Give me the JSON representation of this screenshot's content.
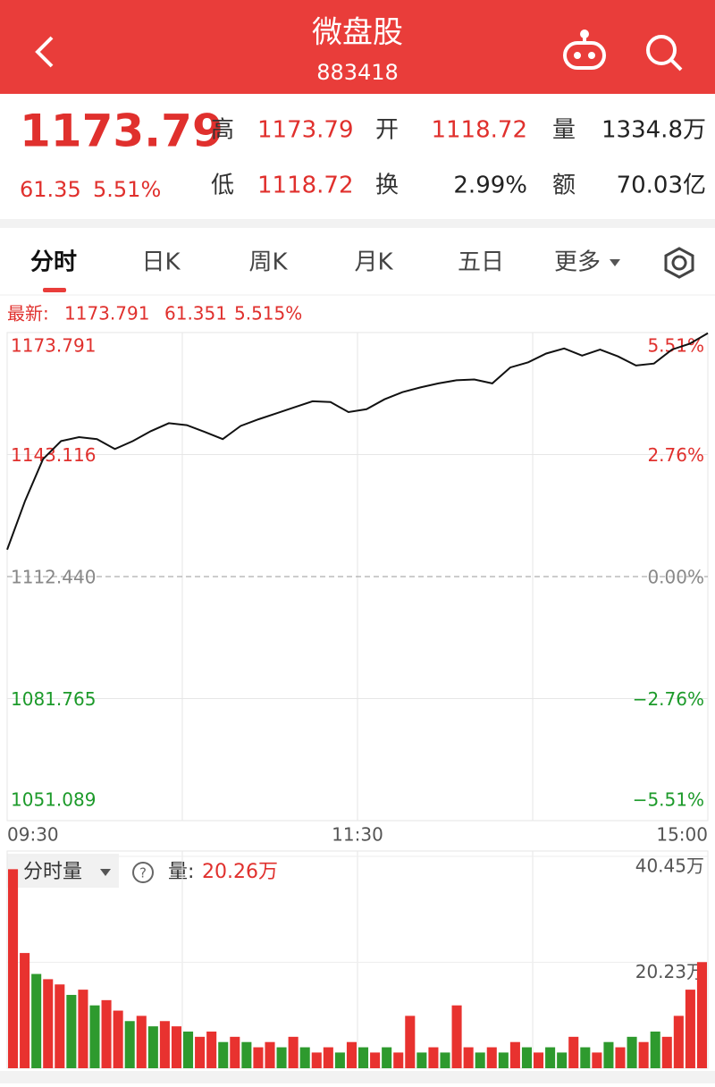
{
  "header": {
    "title": "微盘股",
    "code": "883418"
  },
  "quote": {
    "price": "1173.79",
    "change": "61.35",
    "change_pct": "5.51%",
    "items": [
      [
        "高",
        "1173.79"
      ],
      [
        "开",
        "1118.72"
      ],
      [
        "量",
        "1334.8万"
      ],
      [
        "低",
        "1118.72"
      ],
      [
        "换",
        "2.99%"
      ],
      [
        "额",
        "70.03亿"
      ]
    ]
  },
  "tabs": [
    "分时",
    "日K",
    "周K",
    "月K",
    "五日",
    "更多"
  ],
  "latest": {
    "label": "最新:",
    "price": "1173.791",
    "change": "61.351",
    "change_pct": "5.515%"
  },
  "chart_data": [
    {
      "type": "line",
      "color": "#111111",
      "values": [
        1119.2,
        1131.5,
        1142,
        1146.5,
        1147.5,
        1147,
        1144.5,
        1146.5,
        1149,
        1151,
        1150.5,
        1148.8,
        1147,
        1150.3,
        1152,
        1153.5,
        1155,
        1156.5,
        1156.3,
        1153.8,
        1154.5,
        1157,
        1158.8,
        1160,
        1161,
        1161.8,
        1162,
        1161,
        1165,
        1166.3,
        1168.5,
        1169.8,
        1168,
        1169.5,
        1167.8,
        1165.5,
        1166,
        1169.5,
        1171,
        1173.6
      ],
      "ylim": [
        1051.089,
        1173.791
      ],
      "yticks": [
        1173.791,
        1143.116,
        {
          "value": 1112.44,
          "label": "1112.440"
        },
        1081.765,
        1051.089
      ],
      "y2lim": [
        -5.51,
        5.51
      ],
      "y2ticks": [
        {
          "value": 5.51,
          "label": "5.51%"
        },
        {
          "value": 2.76,
          "label": "2.76%"
        },
        {
          "value": 0,
          "label": "0.00%"
        },
        {
          "value": -2.76,
          "label": "−2.76%"
        },
        {
          "value": -5.51,
          "label": "−5.51%"
        }
      ],
      "xtick_labels": [
        "09:30",
        "11:30",
        "15:00"
      ],
      "grid": true
    },
    {
      "type": "bar",
      "label": "分时量",
      "current_label": "量:",
      "current_value": "20.26万",
      "values": [
        38,
        22,
        18,
        17,
        16,
        14,
        15,
        12,
        13,
        11,
        9,
        10,
        8,
        9,
        8,
        7,
        6,
        7,
        5,
        6,
        5,
        4,
        5,
        4,
        6,
        4,
        3,
        4,
        3,
        5,
        4,
        3,
        4,
        3,
        10,
        3,
        4,
        3,
        12,
        4,
        3,
        4,
        3,
        5,
        4,
        3,
        4,
        3,
        6,
        4,
        3,
        5,
        4,
        6,
        5,
        7,
        6,
        10,
        15,
        20.26
      ],
      "colors": [
        "#e8322f",
        "#e8322f",
        "#2e9a2e",
        "#e8322f",
        "#e8322f",
        "#2e9a2e",
        "#e8322f",
        "#2e9a2e",
        "#e8322f",
        "#e8322f",
        "#2e9a2e",
        "#e8322f",
        "#2e9a2e",
        "#e8322f",
        "#e8322f",
        "#2e9a2e",
        "#e8322f",
        "#e8322f",
        "#2e9a2e",
        "#e8322f",
        "#2e9a2e",
        "#e8322f",
        "#e8322f",
        "#2e9a2e",
        "#e8322f",
        "#2e9a2e",
        "#e8322f",
        "#e8322f",
        "#2e9a2e",
        "#e8322f",
        "#2e9a2e",
        "#e8322f",
        "#2e9a2e",
        "#e8322f",
        "#e8322f",
        "#2e9a2e",
        "#e8322f",
        "#2e9a2e",
        "#e8322f",
        "#e8322f",
        "#2e9a2e",
        "#e8322f",
        "#2e9a2e",
        "#e8322f",
        "#2e9a2e",
        "#e8322f",
        "#2e9a2e",
        "#2e9a2e",
        "#e8322f",
        "#2e9a2e",
        "#e8322f",
        "#2e9a2e",
        "#e8322f",
        "#2e9a2e",
        "#e8322f",
        "#2e9a2e",
        "#e8322f",
        "#e8322f",
        "#e8322f",
        "#e8322f"
      ],
      "ylim": [
        0,
        40.45
      ],
      "yticks": [
        {
          "value": 40.45,
          "label": "40.45万"
        },
        {
          "value": 20.23,
          "label": "20.23万"
        }
      ]
    }
  ]
}
